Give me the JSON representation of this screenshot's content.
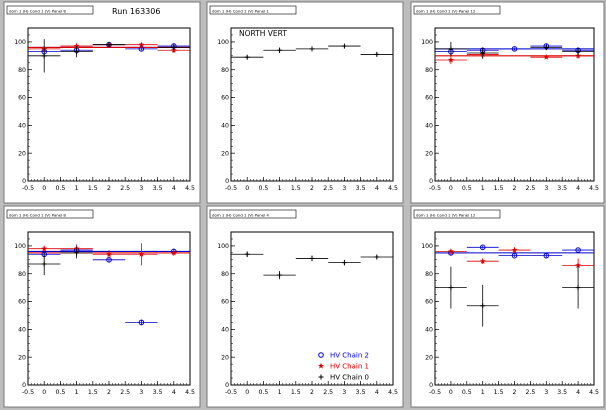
{
  "page": {
    "run_label": "Run 163306"
  },
  "chart_data": [
    {
      "type": "scatter",
      "title": "dom 1 (H) Cond 1 (V) Panel 8",
      "xlim": [
        -0.5,
        4.5
      ],
      "ylim": [
        0,
        110
      ],
      "xticks": [
        "-0.5",
        "0",
        "0.5",
        "1",
        "1.5",
        "2",
        "2.5",
        "3",
        "3.5",
        "4",
        "4.5"
      ],
      "yticks": [
        "0",
        "20",
        "40",
        "60",
        "80",
        "100"
      ],
      "series": [
        {
          "color": "#0000cc",
          "marker": "circle",
          "points": [
            {
              "x": 0,
              "y": 93,
              "yerr": 3
            },
            {
              "x": 1,
              "y": 94,
              "yerr": 3
            },
            {
              "x": 2,
              "y": 98,
              "yerr": 1
            },
            {
              "x": 3,
              "y": 95,
              "yerr": 1
            },
            {
              "x": 4,
              "y": 97,
              "yerr": 2
            }
          ],
          "fit": 96
        },
        {
          "color": "#dd0000",
          "marker": "star",
          "points": [
            {
              "x": 0,
              "y": 95,
              "yerr": 2
            },
            {
              "x": 1,
              "y": 97,
              "yerr": 2
            },
            {
              "x": 2,
              "y": 98,
              "yerr": 1
            },
            {
              "x": 3,
              "y": 98,
              "yerr": 1
            },
            {
              "x": 4,
              "y": 94,
              "yerr": 2
            }
          ],
          "fit": 96
        },
        {
          "color": "#000000",
          "marker": "cross",
          "points": [
            {
              "x": 0,
              "y": 90,
              "yerr": 12
            },
            {
              "x": 1,
              "y": 93,
              "yerr": 4
            },
            {
              "x": 2,
              "y": 98,
              "yerr": 1
            },
            {
              "x": 4,
              "y": 96,
              "yerr": 2
            }
          ],
          "fit": null
        }
      ]
    },
    {
      "type": "scatter",
      "title": "dom 1 (H) Cond 1 (V) Panel 1",
      "annotation": "NORTH VERT",
      "xlim": [
        -0.5,
        4.5
      ],
      "ylim": [
        0,
        110
      ],
      "xticks": [
        "-0.5",
        "0",
        "0.5",
        "1",
        "1.5",
        "2",
        "2.5",
        "3",
        "3.5",
        "4",
        "4.5"
      ],
      "yticks": [
        "0",
        "20",
        "40",
        "60",
        "80",
        "100"
      ],
      "series": [
        {
          "color": "#000000",
          "marker": "cross",
          "points": [
            {
              "x": 0,
              "y": 89,
              "yerr": 1
            },
            {
              "x": 1,
              "y": 94,
              "yerr": 2
            },
            {
              "x": 2,
              "y": 95,
              "yerr": 1
            },
            {
              "x": 3,
              "y": 97,
              "yerr": 1
            },
            {
              "x": 4,
              "y": 91,
              "yerr": 1
            }
          ],
          "fit": null
        }
      ]
    },
    {
      "type": "scatter",
      "title": "dom 1 (H) Cond 1 (V) Panel 12",
      "xlim": [
        -0.5,
        4.5
      ],
      "ylim": [
        0,
        110
      ],
      "xticks": [
        "-0.5",
        "0",
        "0.5",
        "1",
        "1.5",
        "2",
        "2.5",
        "3",
        "3.5",
        "4",
        "4.5"
      ],
      "yticks": [
        "0",
        "20",
        "40",
        "60",
        "80",
        "100"
      ],
      "series": [
        {
          "color": "#0000cc",
          "marker": "circle",
          "points": [
            {
              "x": 0,
              "y": 93,
              "yerr": 3
            },
            {
              "x": 1,
              "y": 94,
              "yerr": 2
            },
            {
              "x": 2,
              "y": 95,
              "yerr": 1
            },
            {
              "x": 3,
              "y": 97,
              "yerr": 2
            },
            {
              "x": 4,
              "y": 94,
              "yerr": 2
            }
          ],
          "fit": 95
        },
        {
          "color": "#dd0000",
          "marker": "star",
          "points": [
            {
              "x": 0,
              "y": 87,
              "yerr": 3
            },
            {
              "x": 1,
              "y": 91,
              "yerr": 3
            },
            {
              "x": 3,
              "y": 89,
              "yerr": 1
            },
            {
              "x": 4,
              "y": 90,
              "yerr": 2
            }
          ],
          "fit": 90
        },
        {
          "color": "#000000",
          "marker": "cross",
          "points": [
            {
              "x": 0,
              "y": 95,
              "yerr": 5
            },
            {
              "x": 1,
              "y": 92,
              "yerr": 4
            },
            {
              "x": 3,
              "y": 96,
              "yerr": 2
            },
            {
              "x": 4,
              "y": 93,
              "yerr": 3
            }
          ],
          "fit": null
        }
      ]
    },
    {
      "type": "scatter",
      "title": "dom 1 (H) Cond 1 (V) Panel 8",
      "xlim": [
        -0.5,
        4.5
      ],
      "ylim": [
        0,
        110
      ],
      "xticks": [
        "-0.5",
        "0",
        "0.5",
        "1",
        "1.5",
        "2",
        "2.5",
        "3",
        "3.5",
        "4",
        "4.5"
      ],
      "yticks": [
        "0",
        "20",
        "40",
        "60",
        "80",
        "100"
      ],
      "series": [
        {
          "color": "#0000cc",
          "marker": "circle",
          "points": [
            {
              "x": 0,
              "y": 94,
              "yerr": 3
            },
            {
              "x": 1,
              "y": 97,
              "yerr": 4
            },
            {
              "x": 2,
              "y": 90,
              "yerr": 2
            },
            {
              "x": 3,
              "y": 45,
              "yerr": 2
            },
            {
              "x": 4,
              "y": 96,
              "yerr": 2
            }
          ],
          "fit": 96
        },
        {
          "color": "#dd0000",
          "marker": "star",
          "points": [
            {
              "x": 0,
              "y": 98,
              "yerr": 2
            },
            {
              "x": 1,
              "y": 98,
              "yerr": 2
            },
            {
              "x": 2,
              "y": 94,
              "yerr": 3
            },
            {
              "x": 3,
              "y": 94,
              "yerr": 8
            },
            {
              "x": 4,
              "y": 95,
              "yerr": 2
            }
          ],
          "fit": 95
        },
        {
          "color": "#000000",
          "marker": "cross",
          "points": [
            {
              "x": 0,
              "y": 87,
              "yerr": 8
            },
            {
              "x": 1,
              "y": 95,
              "yerr": 4
            }
          ],
          "fit": null
        }
      ]
    },
    {
      "type": "scatter",
      "title": "dom 1 (H) Cond 1 (V) Panel 4",
      "xlim": [
        -0.5,
        4.5
      ],
      "ylim": [
        0,
        110
      ],
      "xticks": [
        "-0.5",
        "0",
        "0.5",
        "1",
        "1.5",
        "2",
        "2.5",
        "3",
        "3.5",
        "4",
        "4.5"
      ],
      "yticks": [
        "0",
        "20",
        "40",
        "60",
        "80",
        "100"
      ],
      "legend": {
        "position": "bottom-right",
        "entries": [
          {
            "label": "HV Chain 2",
            "color": "#0000cc",
            "marker": "circle"
          },
          {
            "label": "HV Chain 1",
            "color": "#dd0000",
            "marker": "star"
          },
          {
            "label": "HV Chain 0",
            "color": "#000000",
            "marker": "cross"
          }
        ]
      },
      "series": [
        {
          "color": "#000000",
          "marker": "cross",
          "points": [
            {
              "x": 0,
              "y": 94,
              "yerr": 2
            },
            {
              "x": 1,
              "y": 79,
              "yerr": 3
            },
            {
              "x": 2,
              "y": 91,
              "yerr": 2
            },
            {
              "x": 3,
              "y": 88,
              "yerr": 2
            },
            {
              "x": 4,
              "y": 92,
              "yerr": 1
            }
          ],
          "fit": null
        }
      ]
    },
    {
      "type": "scatter",
      "title": "dom 1 (H) Cond 1 (V) Panel 12",
      "xlim": [
        -0.5,
        4.5
      ],
      "ylim": [
        0,
        110
      ],
      "xticks": [
        "-0.5",
        "0",
        "0.5",
        "1",
        "1.5",
        "2",
        "2.5",
        "3",
        "3.5",
        "4",
        "4.5"
      ],
      "yticks": [
        "0",
        "20",
        "40",
        "60",
        "80",
        "100"
      ],
      "series": [
        {
          "color": "#0000cc",
          "marker": "circle",
          "points": [
            {
              "x": 0,
              "y": 95,
              "yerr": 2
            },
            {
              "x": 1,
              "y": 99,
              "yerr": 1
            },
            {
              "x": 2,
              "y": 93,
              "yerr": 1
            },
            {
              "x": 3,
              "y": 93,
              "yerr": 2
            },
            {
              "x": 4,
              "y": 97,
              "yerr": 1
            }
          ],
          "fit": 95
        },
        {
          "color": "#dd0000",
          "marker": "star",
          "points": [
            {
              "x": 0,
              "y": 96,
              "yerr": 2
            },
            {
              "x": 1,
              "y": 89,
              "yerr": 2
            },
            {
              "x": 2,
              "y": 97,
              "yerr": 2
            },
            {
              "x": 4,
              "y": 86,
              "yerr": 5
            }
          ],
          "fit": null
        },
        {
          "color": "#000000",
          "marker": "cross",
          "points": [
            {
              "x": 0,
              "y": 70,
              "yerr": 15
            },
            {
              "x": 1,
              "y": 57,
              "yerr": 15
            },
            {
              "x": 4,
              "y": 70,
              "yerr": 15
            }
          ],
          "fit": null
        }
      ]
    }
  ]
}
